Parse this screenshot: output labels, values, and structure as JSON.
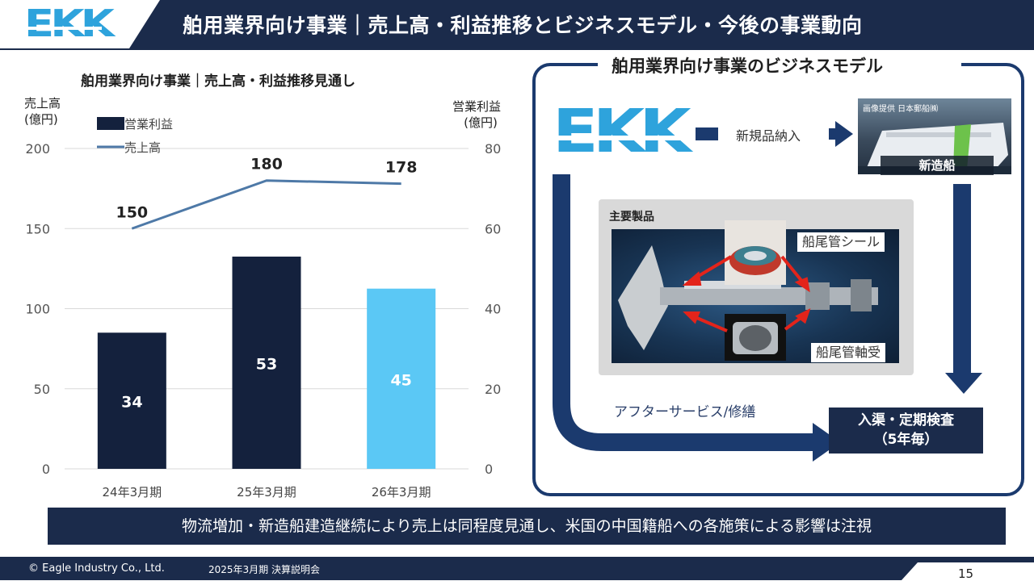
{
  "header": {
    "logo_text": "EKK",
    "title": "舶用業界向け事業｜売上高・利益推移とビジネスモデル・今後の事業動向"
  },
  "chart_data": {
    "type": "bar",
    "title": "舶用業界向け事業｜売上高・利益推移見通し",
    "categories": [
      "24年3月期",
      "25年3月期",
      "26年3月期"
    ],
    "left_axis_label": [
      "売上高",
      "(億円)"
    ],
    "right_axis_label": [
      "営業利益",
      "(億円)"
    ],
    "left_ticks": [
      "200",
      "150",
      "100",
      "50",
      "0"
    ],
    "right_ticks": [
      "80",
      "60",
      "40",
      "20",
      "0"
    ],
    "left_range": [
      0,
      200
    ],
    "right_range": [
      0,
      80
    ],
    "series": [
      {
        "name": "営業利益",
        "kind": "bar",
        "axis": "right",
        "values": [
          34,
          53,
          45
        ],
        "labels": [
          "34",
          "53",
          "45"
        ],
        "colors": [
          "#14213d",
          "#14213d",
          "#5bc8f5"
        ]
      },
      {
        "name": "売上高",
        "kind": "line",
        "axis": "left",
        "values": [
          150,
          180,
          178
        ],
        "labels": [
          "150",
          "180",
          "178"
        ],
        "color": "#4e79a7"
      }
    ],
    "grid": true,
    "legend_placement": "top-left"
  },
  "business_model": {
    "title": "舶用業界向け事業のビジネスモデル",
    "logo_text": "EKK",
    "new_supply_label": "新規品納入",
    "ship_credit": "画像提供 日本郵船㈱",
    "ship_label": "新造船",
    "products_title": "主要製品",
    "seal_label": "船尾管シール",
    "bearing_label": "船尾管軸受",
    "after_service_label": "アフターサービス/修繕",
    "inspection_line1": "入渠・定期検査",
    "inspection_line2": "（5年毎）"
  },
  "summary": "物流増加・新造船建造継続により売上は同程度見通し、米国の中国籍船への各施策による影響は注視",
  "footer": {
    "copyright": "© Eagle Industry Co., Ltd.",
    "event": "2025年3月期 決算説明会",
    "page": "15"
  },
  "colors": {
    "navy": "#1b2b4b",
    "bar_dark": "#14213d",
    "bar_light": "#5bc8f5",
    "line": "#4e79a7",
    "logo_blue": "#2ea3dc",
    "frame": "#1b3a6e"
  }
}
